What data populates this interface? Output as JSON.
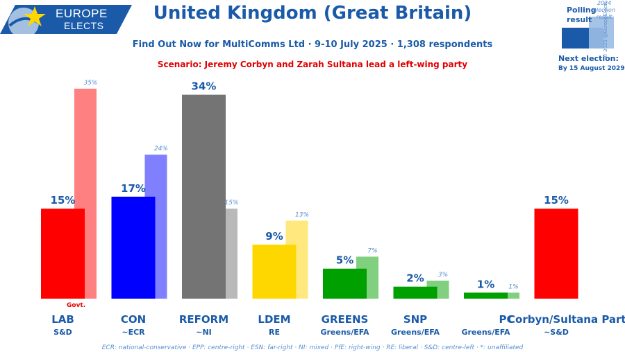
{
  "logo": {
    "line1": "EUROPE",
    "line2": "ELECTS"
  },
  "header": {
    "title": "United Kingdom (Great Britain)",
    "subtitle": "Find Out Now for MultiComms Ltd · 9-10 July 2025 · 1,308 respondents",
    "scenario": "Scenario: Jeremy Corbyn and Zarah Sultana lead a left-wing party"
  },
  "legend": {
    "polling": "Polling result",
    "election": "2024 election result",
    "credit": "© 2025 @EuropeElects",
    "next_election_label": "Next election:",
    "next_election_date": "By 15 August 2029"
  },
  "chart_data": {
    "type": "bar",
    "categories": [
      "LAB",
      "CON",
      "REFORM",
      "LDEM",
      "GREENS",
      "SNP",
      "PC",
      "Corbyn/Sultana Party"
    ],
    "groups": [
      "S&D",
      "~ECR",
      "~NI",
      "RE",
      "Greens/EFA",
      "Greens/EFA",
      "Greens/EFA",
      "~S&D"
    ],
    "series": [
      {
        "name": "Polling result",
        "values": [
          15,
          17,
          34,
          9,
          5,
          2,
          1,
          15
        ],
        "labels": [
          "15%",
          "17%",
          "34%",
          "9%",
          "5%",
          "2%",
          "1%",
          "15%"
        ]
      },
      {
        "name": "2024 election result",
        "values": [
          35,
          24,
          15,
          13,
          7,
          3,
          1,
          null
        ],
        "labels": [
          "35%",
          "24%",
          "15%",
          "13%",
          "7%",
          "3%",
          "1%",
          ""
        ]
      }
    ],
    "colors": [
      "#ff0000",
      "#0000ff",
      "#747474",
      "#ffd700",
      "#00a000",
      "#00a000",
      "#00a000",
      "#ff0000"
    ],
    "light_colors": [
      "#ff8080",
      "#8080ff",
      "#b9b9b9",
      "#ffe97f",
      "#80d080",
      "#80d080",
      "#80d080",
      null
    ],
    "ylim": [
      0,
      35
    ],
    "annotation": "Govt."
  },
  "footer": "ECR: national-conservative · EPP: centre-right · ESN: far-right · NI: mixed · PfE: right-wing · RE: liberal · S&D: centre-left · *: unaffiliated"
}
